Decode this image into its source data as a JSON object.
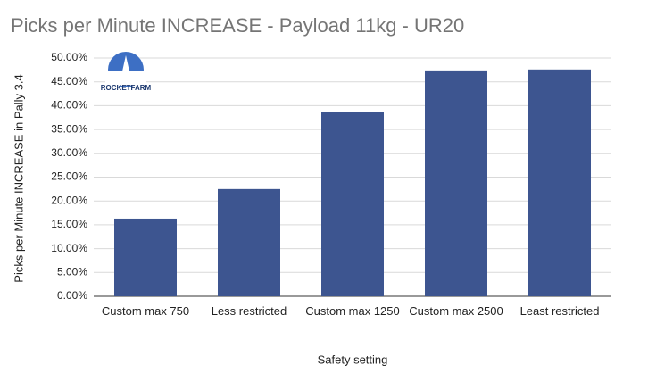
{
  "chart_data": {
    "type": "bar",
    "title": "Picks per Minute INCREASE - Payload 11kg - UR20",
    "x_label": "Safety setting",
    "y_label": "Picks per Minute INCREASE in Pally 3.4",
    "logo": "ROCKETFARM",
    "categories": [
      "Custom max 750",
      "Less restricted",
      "Custom max 1250",
      "Custom max 2500",
      "Least restricted"
    ],
    "values": [
      16.3,
      22.5,
      38.6,
      47.4,
      47.6
    ],
    "color": "#3d5590",
    "ylim": [
      0,
      50
    ],
    "yticks": [
      {
        "value": 0,
        "label": "0.00%"
      },
      {
        "value": 5,
        "label": "5.00%"
      },
      {
        "value": 10,
        "label": "10.00%"
      },
      {
        "value": 15,
        "label": "15.00%"
      },
      {
        "value": 20,
        "label": "20.00%"
      },
      {
        "value": 25,
        "label": "25.00%"
      },
      {
        "value": 30,
        "label": "30.00%"
      },
      {
        "value": 35,
        "label": "35.00%"
      },
      {
        "value": 40,
        "label": "40.00%"
      },
      {
        "value": 45,
        "label": "45.00%"
      },
      {
        "value": 50,
        "label": "50.00%"
      }
    ],
    "grid": true
  }
}
